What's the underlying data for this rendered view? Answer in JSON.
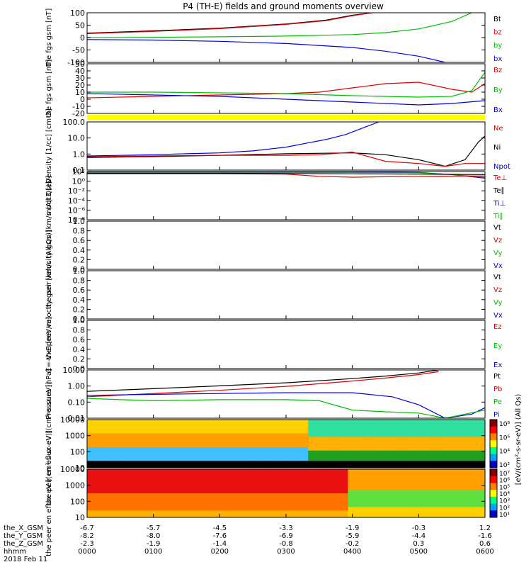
{
  "title": "P4 (TH-E) fields and ground moments overview",
  "chart_data": [
    {
      "type": "line",
      "ylabel": "the fgs gsm [nT]",
      "yticks": [
        "100",
        "50",
        "0",
        "-50",
        "-100"
      ],
      "ylim": [
        -100,
        100
      ],
      "legend": [
        {
          "name": "Bt",
          "color": "#000000"
        },
        {
          "name": "bz",
          "color": "#e00000"
        },
        {
          "name": "by",
          "color": "#00c000"
        },
        {
          "name": "bx",
          "color": "#0000e0"
        }
      ],
      "series": [
        {
          "name": "Bt",
          "x": [
            0,
            1,
            2,
            3,
            3.6,
            4.0,
            4.3
          ],
          "y": [
            18,
            27,
            38,
            55,
            70,
            90,
            100
          ]
        },
        {
          "name": "bz",
          "x": [
            0,
            1,
            2,
            3,
            3.6,
            4.0,
            4.3
          ],
          "y": [
            16,
            25,
            36,
            53,
            68,
            88,
            100
          ]
        },
        {
          "name": "by",
          "x": [
            0,
            1,
            2,
            3,
            4,
            4.5,
            5,
            5.5,
            5.8
          ],
          "y": [
            -1,
            1,
            3,
            6,
            12,
            20,
            35,
            65,
            100
          ]
        },
        {
          "name": "bx",
          "x": [
            0,
            1,
            2,
            3,
            4,
            4.5,
            5.0,
            5.4
          ],
          "y": [
            -8,
            -10,
            -15,
            -24,
            -40,
            -55,
            -75,
            -100
          ]
        }
      ]
    },
    {
      "type": "line",
      "ylabel": "the fgs gsm [nT]",
      "yticks": [
        "50",
        "40",
        "30",
        "20",
        "10",
        "0",
        "-10",
        "-20"
      ],
      "ylim": [
        -20,
        50
      ],
      "legend": [
        {
          "name": "Bz",
          "color": "#e00000"
        },
        {
          "name": "By",
          "color": "#00c000"
        },
        {
          "name": "Bx",
          "color": "#0000e0"
        }
      ],
      "series": [
        {
          "name": "Bz",
          "x": [
            0,
            1,
            2,
            3,
            3.5,
            4,
            4.5,
            5,
            5.5,
            5.8,
            6
          ],
          "y": [
            2,
            4,
            6,
            8,
            10,
            16,
            22,
            24,
            14,
            10,
            22
          ]
        },
        {
          "name": "By",
          "x": [
            0,
            1,
            2,
            3,
            4,
            5,
            5.5,
            5.8,
            6
          ],
          "y": [
            10,
            10,
            9,
            8,
            5,
            3,
            4,
            12,
            38
          ]
        },
        {
          "name": "Bx",
          "x": [
            0,
            1,
            2,
            3,
            4,
            5,
            5.5,
            6
          ],
          "y": [
            8,
            6,
            4,
            0,
            -4,
            -8,
            -6,
            -2
          ]
        }
      ]
    },
    {
      "type": "line",
      "ylabel": "Density [1/cc] [cm-3]",
      "yticks": [
        "100.0",
        "10.0",
        "1.0",
        "0.1"
      ],
      "log": true,
      "ylim": [
        0.03,
        200
      ],
      "legend": [
        {
          "name": "Ne",
          "color": "#e00000"
        },
        {
          "name": "Ni",
          "color": "#000000"
        },
        {
          "name": "Npot",
          "color": "#0000e0"
        }
      ],
      "series": [
        {
          "name": "Ni",
          "x": [
            0,
            1,
            2,
            3,
            4,
            4.5,
            5,
            5.4,
            5.7,
            5.9,
            6
          ],
          "y": [
            0.3,
            0.35,
            0.45,
            0.6,
            0.7,
            0.5,
            0.2,
            0.06,
            0.2,
            5,
            15
          ]
        },
        {
          "name": "Ne",
          "x": [
            0,
            1,
            2,
            3,
            3.5,
            4,
            4.5,
            5,
            5.4,
            5.7,
            6
          ],
          "y": [
            0.35,
            0.4,
            0.45,
            0.45,
            0.5,
            0.8,
            0.15,
            0.1,
            0.06,
            0.1,
            0.1
          ]
        },
        {
          "name": "Npot",
          "x": [
            0,
            1,
            1.5,
            2,
            2.5,
            3,
            3.3,
            3.6,
            3.9,
            4.2,
            4.4
          ],
          "y": [
            0.4,
            0.5,
            0.6,
            0.7,
            1,
            2,
            4,
            8,
            20,
            80,
            200
          ]
        }
      ]
    },
    {
      "type": "line",
      "ylabel": "moqt3 [eV]",
      "yticks": [
        "10²",
        "10⁰",
        "10⁻²",
        "10⁻⁴",
        "10⁻⁶",
        "10⁻⁸"
      ],
      "log": true,
      "ylim": [
        1e-09,
        100
      ],
      "legend": [
        {
          "name": "Te⊥",
          "color": "#e00000"
        },
        {
          "name": "Te∥",
          "color": "#000000"
        },
        {
          "name": "Ti⊥",
          "color": "#0000e0"
        },
        {
          "name": "Ti∥",
          "color": "#00c000"
        }
      ],
      "series": [
        {
          "name": "Ti⊥",
          "x": [
            0,
            2,
            4,
            5,
            5.5,
            6
          ],
          "y": [
            80,
            80,
            80,
            60,
            20,
            3
          ]
        },
        {
          "name": "Ti∥",
          "x": [
            0,
            2,
            4,
            5,
            5.5,
            6
          ],
          "y": [
            60,
            60,
            60,
            50,
            20,
            5
          ]
        },
        {
          "name": "Te⊥",
          "x": [
            0,
            2,
            3,
            3.5,
            4,
            5,
            6
          ],
          "y": [
            30,
            30,
            25,
            8,
            5,
            8,
            10
          ]
        },
        {
          "name": "Te∥",
          "x": [
            0,
            2,
            4,
            5,
            6
          ],
          "y": [
            40,
            40,
            30,
            25,
            20
          ]
        }
      ]
    },
    {
      "type": "line",
      "ylabel": "the peir velocity gsm [km/s (All Qs)]",
      "yticks": [
        "1.0",
        "0.8",
        "0.6",
        "0.4",
        "0.2",
        "0.0"
      ],
      "ylim": [
        0,
        1
      ],
      "legend": [
        {
          "name": "Vt",
          "color": "#000000"
        },
        {
          "name": "Vz",
          "color": "#e00000"
        },
        {
          "name": "Vy",
          "color": "#00c000"
        },
        {
          "name": "Vx",
          "color": "#0000e0"
        }
      ],
      "series": []
    },
    {
      "type": "line",
      "ylabel": "the peer velocity gsm [km/s (All Qs)]",
      "yticks": [
        "1.0",
        "0.8",
        "0.6",
        "0.4",
        "0.2",
        "0.0"
      ],
      "ylim": [
        0,
        1
      ],
      "legend": [
        {
          "name": "Vt",
          "color": "#000000"
        },
        {
          "name": "Vz",
          "color": "#e00000"
        },
        {
          "name": "Vy",
          "color": "#00c000"
        },
        {
          "name": "Vx",
          "color": "#0000e0"
        }
      ],
      "series": []
    },
    {
      "type": "line",
      "ylabel": "E=-VxB [mV/m]",
      "yticks": [
        "1.0",
        "0.8",
        "0.6",
        "0.4",
        "0.2",
        "0.0"
      ],
      "ylim": [
        0,
        1
      ],
      "legend": [
        {
          "name": "Ez",
          "color": "#e00000"
        },
        {
          "name": "Ey",
          "color": "#00c000"
        },
        {
          "name": "Ex",
          "color": "#0000e0"
        }
      ],
      "series": []
    },
    {
      "type": "line",
      "ylabel": "Pressure [nPa]",
      "yticks": [
        "10.00",
        "1.00",
        "0.10",
        "0.01"
      ],
      "log": true,
      "ylim": [
        0.005,
        20
      ],
      "legend": [
        {
          "name": "Pt",
          "color": "#000000"
        },
        {
          "name": "Pb",
          "color": "#e00000"
        },
        {
          "name": "Pe",
          "color": "#00c000"
        },
        {
          "name": "Pi",
          "color": "#0000e0"
        }
      ],
      "series": [
        {
          "name": "Pt",
          "x": [
            0,
            1,
            2,
            3,
            4,
            4.5,
            5.0,
            5.3
          ],
          "y": [
            0.5,
            0.8,
            1.3,
            2.2,
            4.5,
            7,
            12,
            20
          ]
        },
        {
          "name": "Pb",
          "x": [
            0,
            1,
            2,
            3,
            4,
            4.5,
            5.0,
            5.3
          ],
          "y": [
            0.2,
            0.35,
            0.6,
            1.2,
            3,
            5,
            9,
            15
          ]
        },
        {
          "name": "Pi",
          "x": [
            0,
            1,
            2,
            3,
            4,
            4.6,
            5,
            5.4,
            5.8,
            6
          ],
          "y": [
            0.25,
            0.3,
            0.35,
            0.4,
            0.4,
            0.2,
            0.05,
            0.005,
            0.01,
            0.03
          ]
        },
        {
          "name": "Pe",
          "x": [
            0,
            0.5,
            1,
            2,
            3,
            3.5,
            4,
            4.5,
            5,
            5.4,
            6
          ],
          "y": [
            0.15,
            0.12,
            0.1,
            0.12,
            0.12,
            0.1,
            0.02,
            0.015,
            0.012,
            0.004,
            0.02
          ]
        }
      ]
    },
    {
      "type": "heatmap",
      "ylabel": "the peir en eflux eV [(cm²-s-sr-eV)]",
      "yticks": [
        "10000",
        "1000",
        "100",
        "10"
      ],
      "colorbar_ticks": [
        "10⁸",
        "10⁶",
        "10⁴",
        "10²"
      ]
    },
    {
      "type": "heatmap",
      "ylabel": "the peer en eflux eV [(cm²-s-sr-eV)]",
      "yticks": [
        "10000",
        "1000",
        "100",
        "10"
      ],
      "colorbar_ticks": [
        "10⁷",
        "10⁶",
        "10⁵",
        "10⁴",
        "10³",
        "10²",
        "10¹"
      ]
    }
  ],
  "colorbar_label": "[eV/(cm²-s-sr-eV)] (All Qs)",
  "xaxis": {
    "rows": [
      {
        "label": "the_X_GSM",
        "values": [
          "-6.7",
          "-5.7",
          "-4.5",
          "-3.3",
          "-1.9",
          "-0.3",
          "1.2"
        ]
      },
      {
        "label": "the_Y_GSM",
        "values": [
          "-8.2",
          "-8.0",
          "-7.6",
          "-6.9",
          "-5.9",
          "-4.4",
          "-1.6"
        ]
      },
      {
        "label": "the_Z_GSM",
        "values": [
          "-2.3",
          "-1.9",
          "-1.4",
          "-0.8",
          "-0.2",
          "0.3",
          "0.6"
        ]
      },
      {
        "label": "hhmm",
        "values": [
          "0000",
          "0100",
          "0200",
          "0300",
          "0400",
          "0500",
          "0600"
        ]
      }
    ],
    "date": "2018 Feb 11"
  }
}
